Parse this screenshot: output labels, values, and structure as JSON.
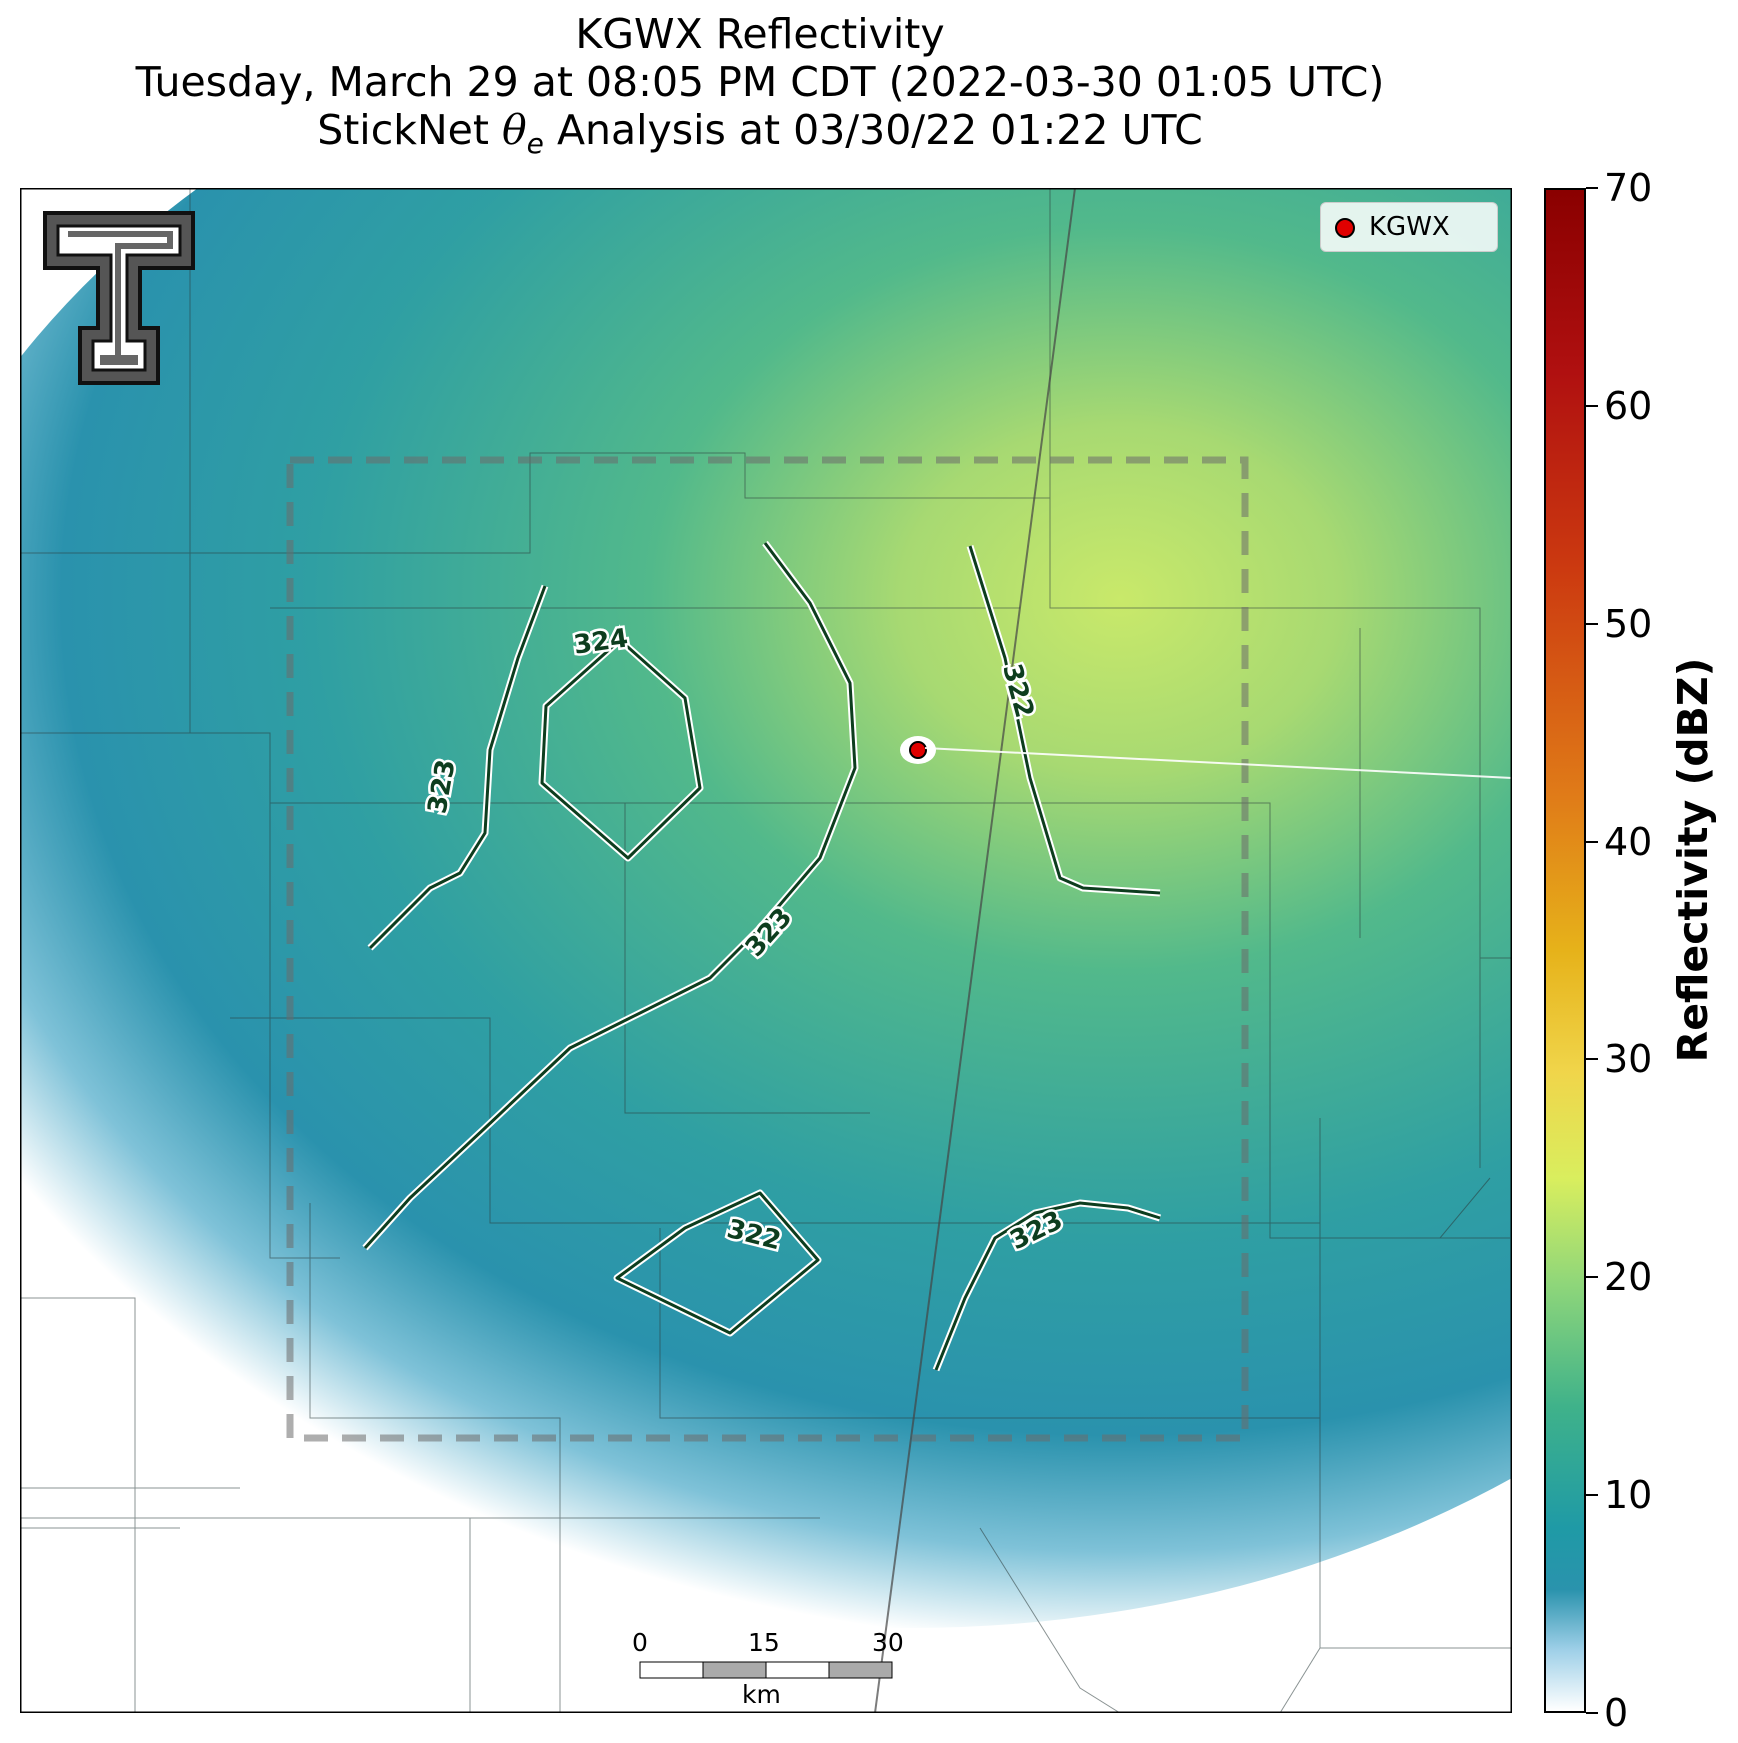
{
  "title": {
    "line1": "KGWX Reflectivity",
    "line2": "Tuesday, March 29 at 08:05 PM CDT (2022-03-30 01:05 UTC)",
    "line3_pre": "StickNet ",
    "line3_theta": "θ",
    "line3_sub": "e",
    "line3_post": " Analysis at 03/30/22 01:22 UTC"
  },
  "legend": {
    "label": "KGWX"
  },
  "contours": [
    {
      "label": "324"
    },
    {
      "label": "323"
    },
    {
      "label": "323"
    },
    {
      "label": "322"
    },
    {
      "label": "322"
    },
    {
      "label": "323"
    }
  ],
  "scalebar": {
    "ticks": [
      "0",
      "15",
      "30"
    ],
    "unit": "km"
  },
  "colorbar": {
    "title": "Reflectivity (dBZ)",
    "ticks": [
      "0",
      "10",
      "20",
      "30",
      "40",
      "50",
      "60",
      "70"
    ],
    "range": [
      0,
      70
    ],
    "colors": {
      "low": "#ffffff",
      "mid": "#1f9aa6",
      "high": "#8a0000"
    }
  },
  "radar_site": {
    "color": "#e00000"
  },
  "contour_color": "#0d3d1e"
}
